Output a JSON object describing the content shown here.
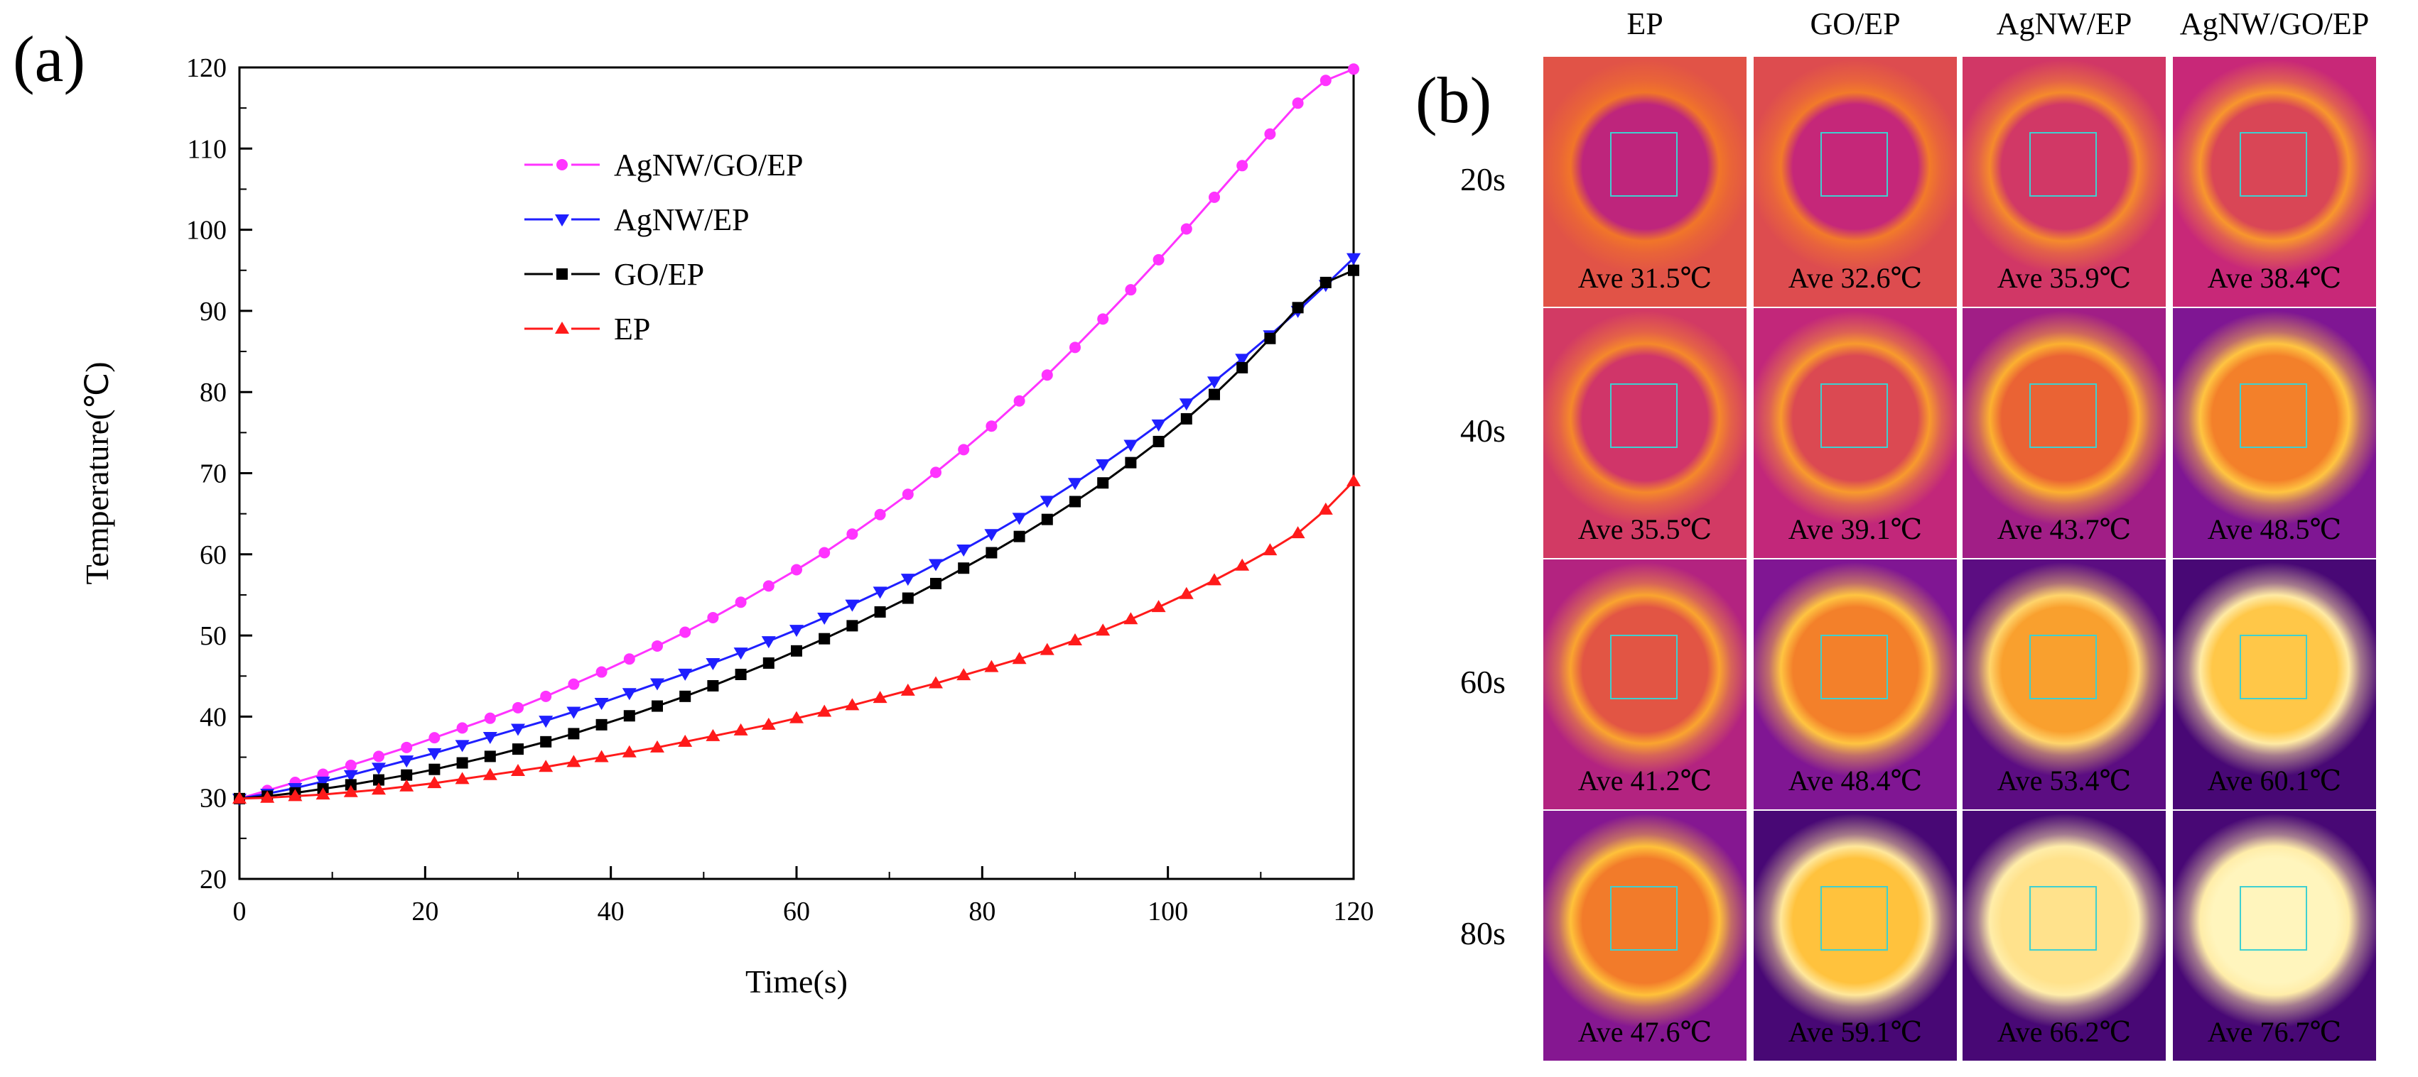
{
  "panel_labels": {
    "a": "(a)",
    "b": "(b)"
  },
  "chart_data": {
    "type": "line",
    "title": "",
    "xlabel": "Time(s)",
    "ylabel": "Temperature(℃)",
    "xlim": [
      0,
      120
    ],
    "ylim": [
      20,
      120
    ],
    "xticks": [
      0,
      20,
      40,
      60,
      80,
      100,
      120
    ],
    "yticks": [
      20,
      30,
      40,
      50,
      60,
      70,
      80,
      90,
      100,
      110,
      120
    ],
    "grid": false,
    "legend_position": "top-center",
    "x": [
      0,
      3,
      6,
      9,
      12,
      15,
      18,
      21,
      24,
      27,
      30,
      33,
      36,
      39,
      42,
      45,
      48,
      51,
      54,
      57,
      60,
      63,
      66,
      69,
      72,
      75,
      78,
      81,
      84,
      87,
      90,
      93,
      96,
      99,
      102,
      105,
      108,
      111,
      114,
      117,
      120
    ],
    "series": [
      {
        "name": "AgNW/GO/EP",
        "color": "#ff33ff",
        "marker": "circle",
        "values": [
          29.9,
          30.9,
          31.9,
          32.9,
          34.0,
          35.1,
          36.2,
          37.4,
          38.6,
          39.8,
          41.1,
          42.5,
          44.0,
          45.5,
          47.1,
          48.7,
          50.4,
          52.2,
          54.1,
          56.1,
          58.1,
          60.2,
          62.5,
          64.9,
          67.4,
          70.1,
          72.9,
          75.8,
          78.9,
          82.1,
          85.5,
          89.0,
          92.6,
          96.3,
          100.1,
          104.0,
          107.9,
          111.8,
          115.6,
          118.4,
          119.8
        ]
      },
      {
        "name": "AgNW/EP",
        "color": "#1f1fff",
        "marker": "triangle-down",
        "values": [
          29.9,
          30.5,
          31.2,
          32.0,
          32.8,
          33.7,
          34.6,
          35.5,
          36.5,
          37.5,
          38.5,
          39.5,
          40.6,
          41.7,
          42.9,
          44.1,
          45.3,
          46.6,
          47.9,
          49.3,
          50.7,
          52.2,
          53.8,
          55.4,
          57.0,
          58.8,
          60.6,
          62.5,
          64.5,
          66.6,
          68.8,
          71.1,
          73.5,
          76.0,
          78.6,
          81.3,
          84.1,
          87.0,
          90.0,
          93.2,
          96.5
        ]
      },
      {
        "name": "GO/EP",
        "color": "#000000",
        "marker": "square",
        "values": [
          29.9,
          30.2,
          30.6,
          31.1,
          31.6,
          32.2,
          32.8,
          33.5,
          34.3,
          35.1,
          36.0,
          36.9,
          37.9,
          39.0,
          40.1,
          41.3,
          42.5,
          43.8,
          45.2,
          46.6,
          48.1,
          49.6,
          51.2,
          52.9,
          54.6,
          56.4,
          58.3,
          60.2,
          62.2,
          64.3,
          66.5,
          68.8,
          71.3,
          73.9,
          76.7,
          79.7,
          83.0,
          86.6,
          90.4,
          93.5,
          95.0
        ]
      },
      {
        "name": "EP",
        "color": "#ff1a1a",
        "marker": "triangle-up",
        "values": [
          29.9,
          30.0,
          30.2,
          30.4,
          30.7,
          31.0,
          31.4,
          31.8,
          32.3,
          32.8,
          33.3,
          33.8,
          34.4,
          35.0,
          35.6,
          36.2,
          36.9,
          37.6,
          38.3,
          39.0,
          39.8,
          40.6,
          41.4,
          42.3,
          43.2,
          44.1,
          45.1,
          46.1,
          47.1,
          48.2,
          49.4,
          50.6,
          52.0,
          53.5,
          55.1,
          56.8,
          58.6,
          60.5,
          62.6,
          65.5,
          69.0
        ]
      }
    ]
  },
  "thermal": {
    "columns": [
      "EP",
      "GO/EP",
      "AgNW/EP",
      "AgNW/GO/EP"
    ],
    "rows": [
      "20s",
      "40s",
      "60s",
      "80s"
    ],
    "values": [
      [
        "Ave 31.5℃",
        "Ave 32.6℃",
        "Ave 35.9℃",
        "Ave 38.4℃"
      ],
      [
        "Ave 35.5℃",
        "Ave 39.1℃",
        "Ave 43.7℃",
        "Ave 48.5℃"
      ],
      [
        "Ave 41.2℃",
        "Ave 48.4℃",
        "Ave 53.4℃",
        "Ave 60.1℃"
      ],
      [
        "Ave 47.6℃",
        "Ave 59.1℃",
        "Ave 66.2℃",
        "Ave 76.7℃"
      ]
    ],
    "temperatures": [
      [
        31.5,
        32.6,
        35.9,
        38.4
      ],
      [
        35.5,
        39.1,
        43.7,
        48.5
      ],
      [
        41.2,
        48.4,
        53.4,
        60.1
      ],
      [
        47.6,
        59.1,
        66.2,
        76.7
      ]
    ]
  }
}
